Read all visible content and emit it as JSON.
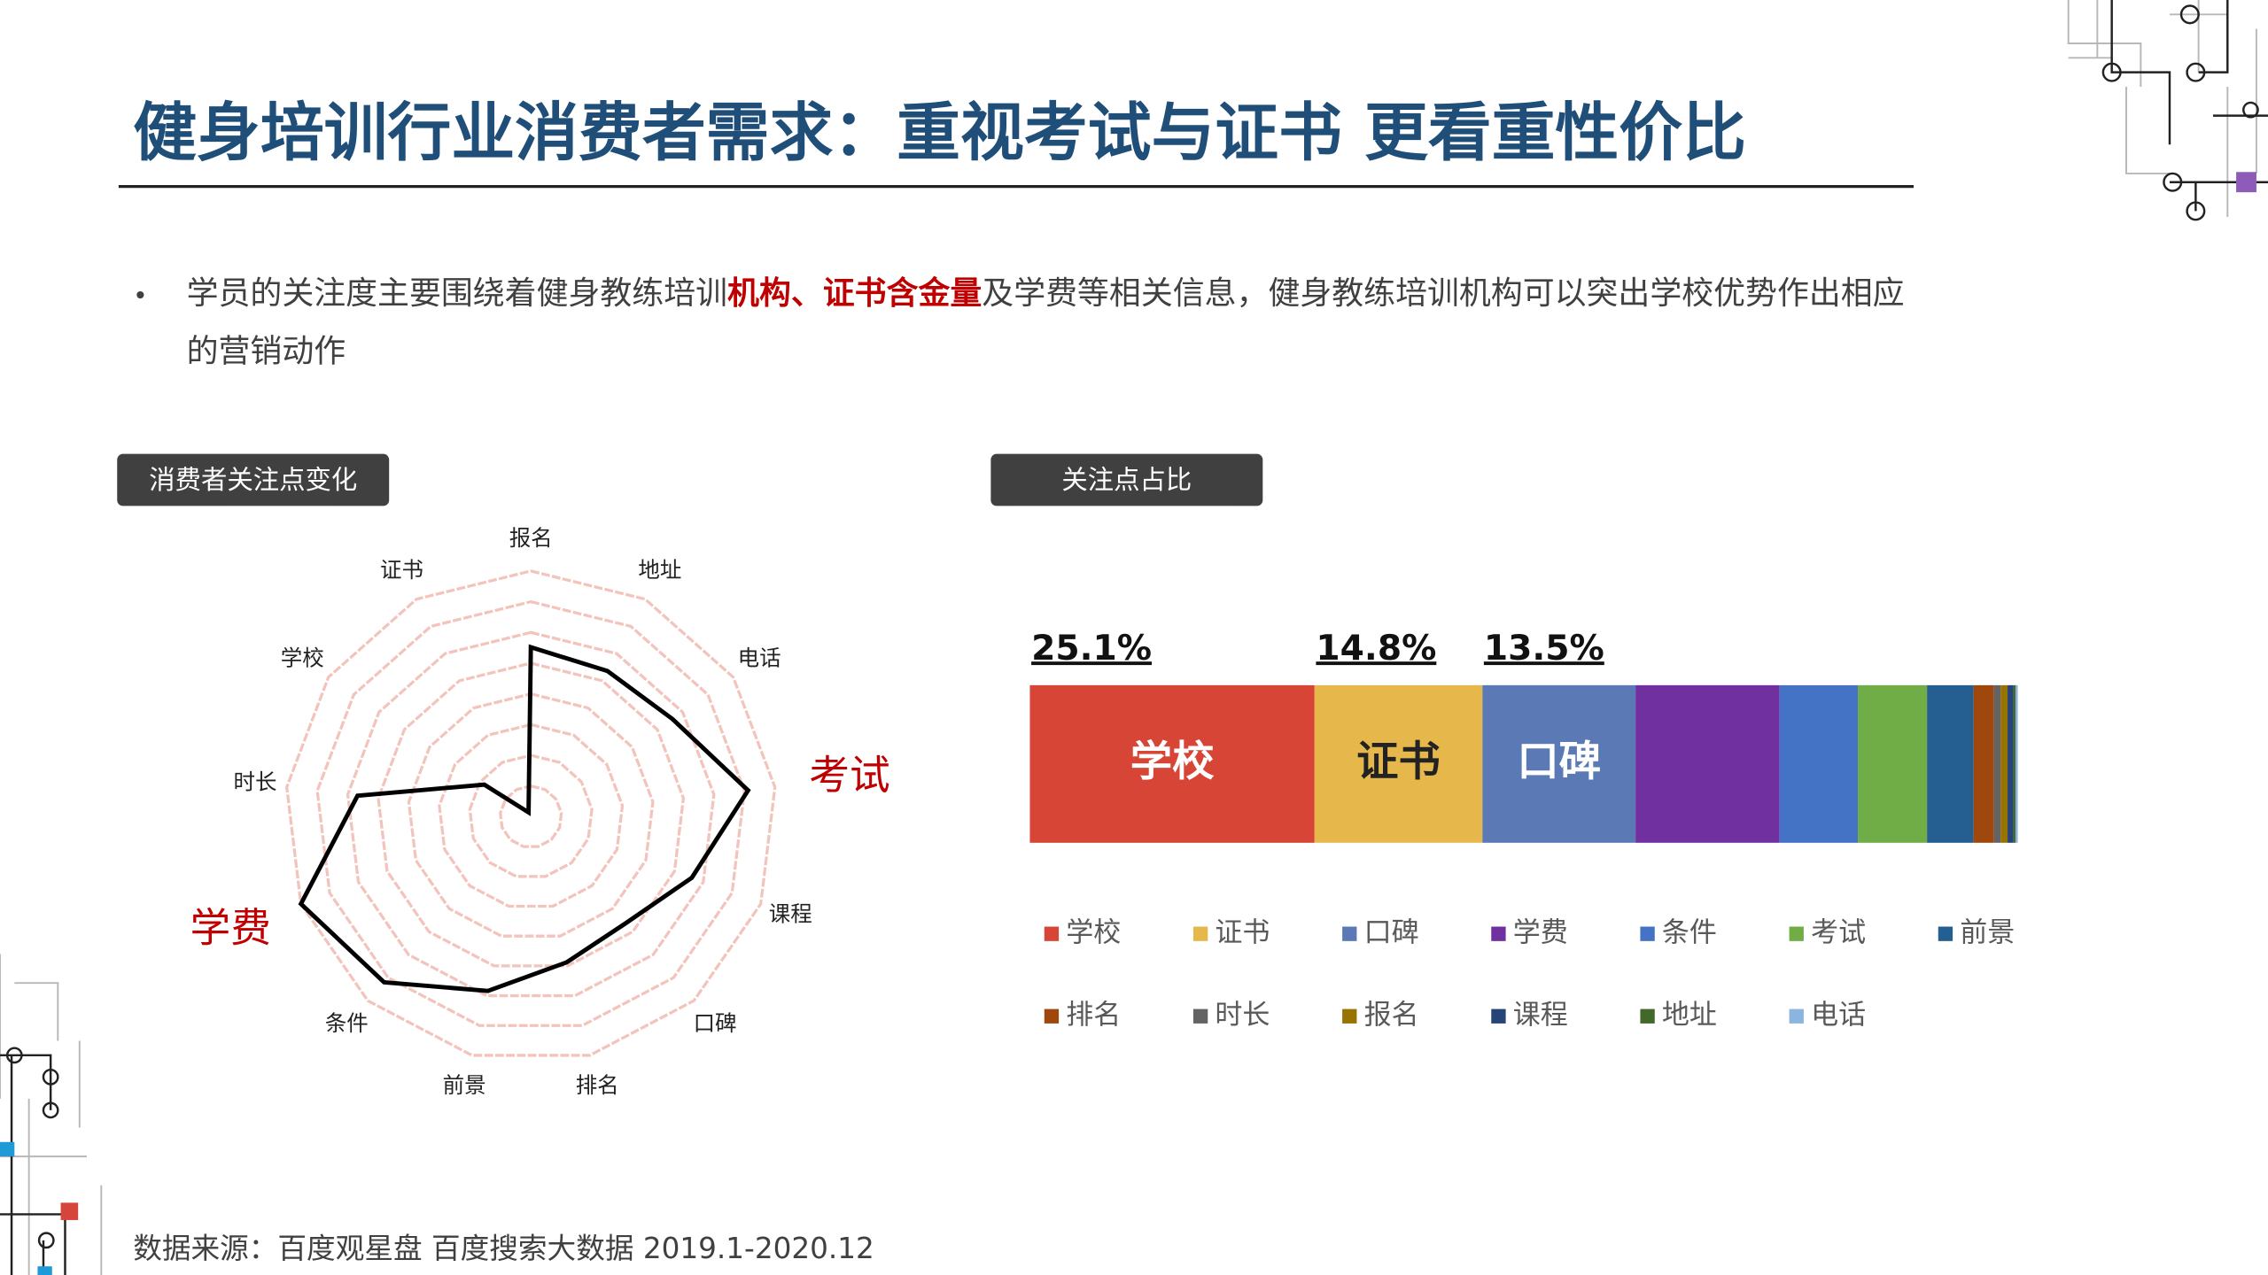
{
  "header": {
    "title": "健身培训行业消费者需求：重视考试与证书 更看重性价比"
  },
  "bullet": {
    "parts": [
      "学员的关注度主要围绕着健身教练培训",
      "机构、证书含金量",
      "及学费等相关信息，健身教练培训机构可以突出学校优势作出相应",
      "的营销动作"
    ]
  },
  "source": "数据来源：百度观星盘 百度搜索大数据 2019.1-2020.12",
  "chart_data": [
    {
      "type": "radar",
      "title": "消费者关注点变化",
      "categories": [
        "报名",
        "地址",
        "电话",
        "考试",
        "课程",
        "口碑",
        "排名",
        "前景",
        "条件",
        "学费",
        "时长",
        "学校",
        "证书"
      ],
      "series": [
        {
          "color": "#000000",
          "values": [
            69,
            67,
            70,
            89,
            70,
            58,
            61,
            73,
            90,
            100,
            71,
            23,
            2
          ]
        }
      ],
      "rlim": [
        0,
        100
      ],
      "rings": 8,
      "ring_color": "#f2c4bc",
      "highlight": [
        3,
        9
      ],
      "highlight_color": "#c00000"
    },
    {
      "type": "stacked-bar",
      "title": "关注点占比",
      "orientation": "horizontal",
      "series": [
        {
          "name": "学校",
          "color": "#d64536",
          "values": [
            25.1
          ],
          "value_labels": [
            "25.1%"
          ]
        },
        {
          "name": "证书",
          "color": "#e6b84c",
          "values": [
            14.8
          ],
          "value_labels": [
            "14.8%"
          ]
        },
        {
          "name": "口碑",
          "color": "#5b7ab5",
          "values": [
            13.5
          ],
          "value_labels": [
            "13.5%"
          ]
        },
        {
          "name": "学费",
          "color": "#7030a0",
          "values": [
            12.7
          ]
        },
        {
          "name": "条件",
          "color": "#4472c4",
          "values": [
            6.9
          ]
        },
        {
          "name": "考试",
          "color": "#70ad47",
          "values": [
            6.1
          ]
        },
        {
          "name": "前景",
          "color": "#255e91",
          "values": [
            4.1
          ]
        },
        {
          "name": "排名",
          "color": "#9e480e",
          "values": [
            1.8
          ]
        },
        {
          "name": "时长",
          "color": "#636363",
          "values": [
            0.6
          ]
        },
        {
          "name": "报名",
          "color": "#997300",
          "values": [
            0.6
          ]
        },
        {
          "name": "课程",
          "color": "#264478",
          "values": [
            0.5
          ]
        },
        {
          "name": "地址",
          "color": "#43682b",
          "values": [
            0.2
          ]
        },
        {
          "name": "电话",
          "color": "#8cb4e0",
          "values": [
            0.2
          ]
        }
      ],
      "legend": "bottom"
    }
  ]
}
